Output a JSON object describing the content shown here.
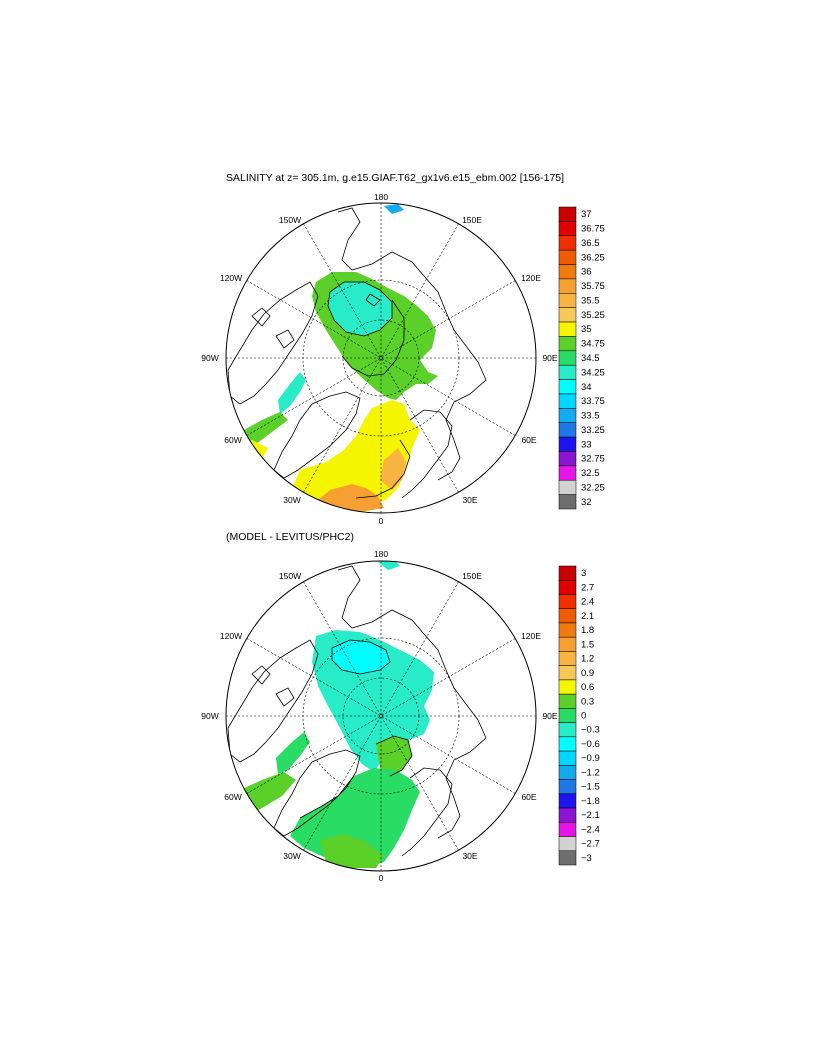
{
  "panel_top": {
    "title": "SALINITY at z= 305.1m, g.e15.GIAF.T62_gx1v6.e15_ebm.002 [156-175]",
    "longitude_labels": {
      "n": "180",
      "nw": "150W",
      "ne": "150E",
      "wnw": "120W",
      "ene": "120E",
      "w": "90W",
      "e": "90E",
      "wsw": "60W",
      "esw": "60E",
      "sw": "30W",
      "se": "30E",
      "s": "0"
    },
    "colorbar_labels": [
      "37",
      "36.75",
      "36.5",
      "36.25",
      "36",
      "35.75",
      "35.5",
      "35.25",
      "35",
      "34.75",
      "34.5",
      "34.25",
      "34",
      "33.75",
      "33.5",
      "33.25",
      "33",
      "32.75",
      "32.5",
      "32.25",
      "32"
    ],
    "colorbar_colors": [
      "#c80000",
      "#e00000",
      "#f03000",
      "#f05a00",
      "#f07a10",
      "#f5a030",
      "#f7b440",
      "#f5c85a",
      "#f5f500",
      "#5ad028",
      "#28dc64",
      "#28ebc8",
      "#00ffff",
      "#00d7ff",
      "#14aaf0",
      "#1e78e6",
      "#1e14f0",
      "#8c14d2",
      "#e614e6",
      "#d2d2d2",
      "#6e6e6e"
    ]
  },
  "panel_bottom": {
    "title": "(MODEL - LEVITUS/PHC2)",
    "longitude_labels": {
      "n": "180",
      "nw": "150W",
      "ne": "150E",
      "wnw": "120W",
      "ene": "120E",
      "w": "90W",
      "e": "90E",
      "wsw": "60W",
      "esw": "60E",
      "sw": "30W",
      "se": "30E",
      "s": "0"
    },
    "colorbar_labels": [
      "3",
      "2.7",
      "2.4",
      "2.1",
      "1.8",
      "1.5",
      "1.2",
      "0.9",
      "0.6",
      "0.3",
      "0",
      "−0.3",
      "−0.6",
      "−0.9",
      "−1.2",
      "−1.5",
      "−1.8",
      "−2.1",
      "−2.4",
      "−2.7",
      "−3"
    ],
    "colorbar_colors": [
      "#c80000",
      "#e00000",
      "#f03000",
      "#f05a00",
      "#f07a10",
      "#f5a030",
      "#f7b440",
      "#f5c85a",
      "#f5f500",
      "#5ad028",
      "#28dc64",
      "#28ebc8",
      "#00ffff",
      "#00d7ff",
      "#14aaf0",
      "#1e78e6",
      "#1e14f0",
      "#8c14d2",
      "#e614e6",
      "#d2d2d2",
      "#6e6e6e"
    ]
  }
}
